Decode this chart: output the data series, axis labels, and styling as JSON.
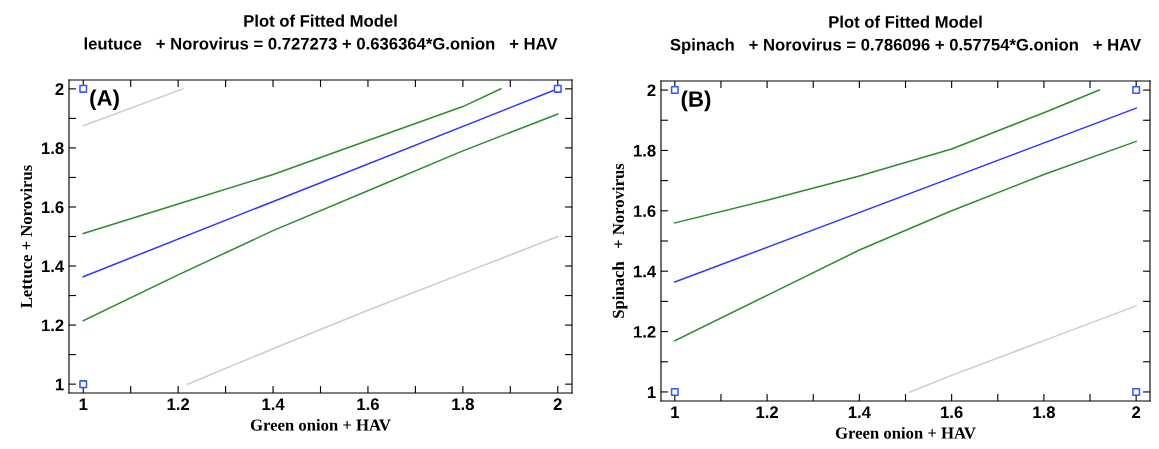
{
  "chart_data": [
    {
      "type": "line",
      "title": "Plot of Fitted Model",
      "subtitle": "leutuce   + Norovirus = 0.727273 + 0.636364*G.onion   + HAV",
      "xlabel": "Green onion + HAV",
      "ylabel": "Lettuce + Norovirus",
      "annotations": [
        "(A)"
      ],
      "xlim": [
        0.97,
        2.03
      ],
      "ylim": [
        0.97,
        2.03
      ],
      "xticks": [
        1,
        {
          "value": 1.1,
          "label": null
        },
        1.2,
        {
          "value": 1.3,
          "label": null
        },
        1.4,
        {
          "value": 1.5,
          "label": null
        },
        1.6,
        {
          "value": 1.7,
          "label": null
        },
        1.8,
        {
          "value": 1.9,
          "label": null
        },
        2
      ],
      "yticks": [
        1,
        {
          "value": 1.1,
          "label": null
        },
        1.2,
        {
          "value": 1.3,
          "label": null
        },
        1.4,
        {
          "value": 1.5,
          "label": null
        },
        1.6,
        {
          "value": 1.7,
          "label": null
        },
        1.8,
        {
          "value": 1.9,
          "label": null
        },
        2
      ],
      "grid": false,
      "legend": false,
      "series": [
        {
          "color": "#cccccc",
          "x": [
            1,
            1.21
          ],
          "values": [
            1.875,
            2.0
          ]
        },
        {
          "color": "#cccccc",
          "x": [
            1.22,
            1.4,
            1.6,
            1.8,
            2
          ],
          "values": [
            1.0,
            1.12,
            1.25,
            1.375,
            1.5
          ]
        },
        {
          "color": "#2e8b2e",
          "x": [
            1,
            1.2,
            1.4,
            1.6,
            1.8,
            1.88
          ],
          "values": [
            1.51,
            1.61,
            1.71,
            1.825,
            1.94,
            2.0
          ]
        },
        {
          "color": "#2e8b2e",
          "x": [
            1,
            1.2,
            1.4,
            1.6,
            1.8,
            2
          ],
          "values": [
            1.215,
            1.37,
            1.52,
            1.655,
            1.79,
            1.915
          ]
        },
        {
          "color": "#3333ff",
          "x": [
            1,
            2
          ],
          "values": [
            1.364,
            2.0
          ]
        },
        {
          "type": "scatter",
          "marker": "square",
          "color": "#3355ff",
          "x": [
            1,
            1,
            2
          ],
          "values": [
            1,
            2,
            2
          ]
        }
      ]
    },
    {
      "type": "line",
      "title": "Plot of Fitted Model",
      "subtitle": "Spinach   + Norovirus = 0.786096 + 0.57754*G.onion   + HAV",
      "xlabel": "Green onion + HAV",
      "ylabel": "Spinach   + Norovirus",
      "annotations": [
        "(B)"
      ],
      "xlim": [
        0.97,
        2.03
      ],
      "ylim": [
        0.97,
        2.03
      ],
      "xticks": [
        1,
        {
          "value": 1.1,
          "label": null
        },
        1.2,
        {
          "value": 1.3,
          "label": null
        },
        1.4,
        {
          "value": 1.5,
          "label": null
        },
        1.6,
        {
          "value": 1.7,
          "label": null
        },
        1.8,
        {
          "value": 1.9,
          "label": null
        },
        2
      ],
      "yticks": [
        1,
        {
          "value": 1.1,
          "label": null
        },
        1.2,
        {
          "value": 1.3,
          "label": null
        },
        1.4,
        {
          "value": 1.5,
          "label": null
        },
        1.6,
        {
          "value": 1.7,
          "label": null
        },
        1.8,
        {
          "value": 1.9,
          "label": null
        },
        2
      ],
      "grid": false,
      "legend": false,
      "series": [
        {
          "color": "#cccccc",
          "x": [
            1.51,
            1.6,
            1.8,
            2
          ],
          "values": [
            1.0,
            1.055,
            1.17,
            1.285
          ]
        },
        {
          "color": "#2e8b2e",
          "x": [
            1,
            1.2,
            1.4,
            1.6,
            1.8,
            1.92
          ],
          "values": [
            1.56,
            1.635,
            1.715,
            1.805,
            1.925,
            2.0
          ]
        },
        {
          "color": "#2e8b2e",
          "x": [
            1,
            1.2,
            1.4,
            1.6,
            1.8,
            2
          ],
          "values": [
            1.17,
            1.32,
            1.47,
            1.6,
            1.72,
            1.83
          ]
        },
        {
          "color": "#3333ff",
          "x": [
            1,
            2
          ],
          "values": [
            1.364,
            1.94
          ]
        },
        {
          "type": "scatter",
          "marker": "square",
          "color": "#3355ff",
          "x": [
            1,
            1,
            2,
            2
          ],
          "values": [
            1,
            2,
            1,
            2
          ]
        }
      ]
    }
  ]
}
